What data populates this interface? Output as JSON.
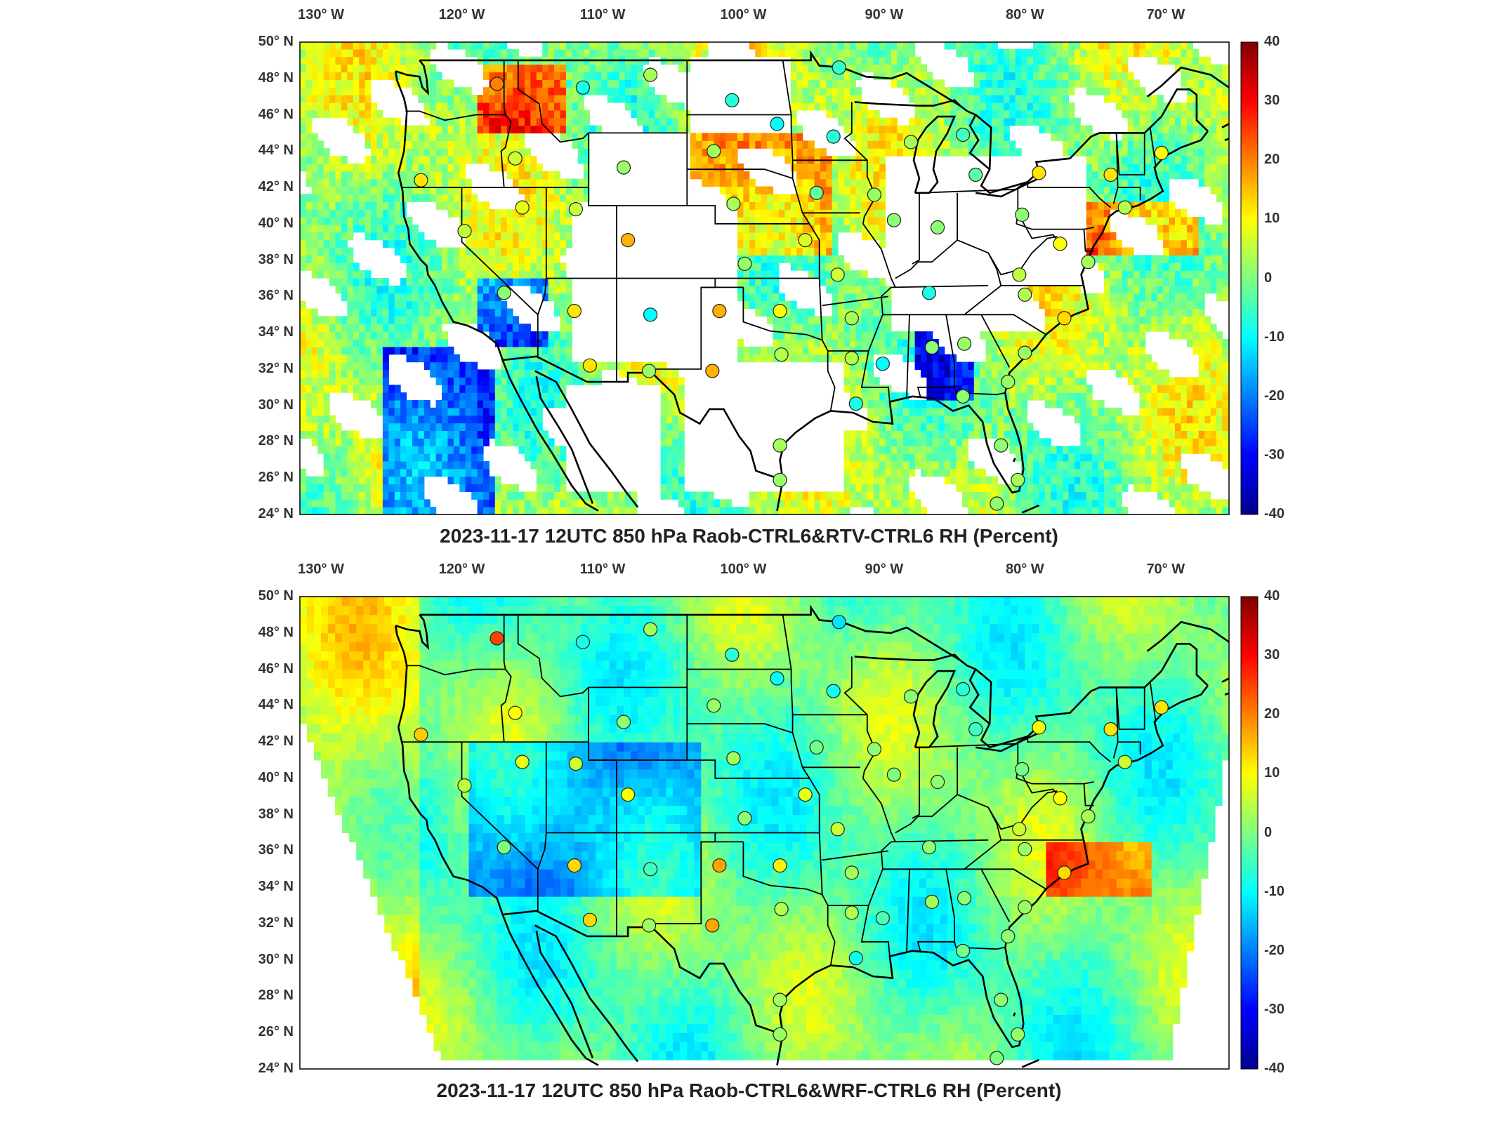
{
  "colors": {
    "colormap": [
      "#00008f",
      "#0000ff",
      "#007fff",
      "#00ffff",
      "#7fff7f",
      "#ffff00",
      "#ff7f00",
      "#ff0000",
      "#7f0000"
    ],
    "frame": "#000000",
    "background": "#ffffff"
  },
  "panels": [
    {
      "title": "2023-11-17 12UTC 850 hPa Raob-CTRL6&RTV-CTRL6 RH (Percent)",
      "field_coverage": "scattered retrieval swaths",
      "lon_labels": [
        "130° W",
        "120° W",
        "110° W",
        "100° W",
        "90° W",
        "80° W",
        "70° W"
      ],
      "lat_labels": [
        "50° N",
        "48° N",
        "46° N",
        "44° N",
        "42° N",
        "40° N",
        "38° N",
        "36° N",
        "34° N",
        "32° N",
        "30° N",
        "28° N",
        "26° N",
        "24° N"
      ],
      "colorbar_labels": [
        "40",
        "30",
        "20",
        "10",
        "0",
        "-10",
        "-20",
        "-30",
        "-40"
      ]
    },
    {
      "title": "2023-11-17 12UTC 850 hPa Raob-CTRL6&WRF-CTRL6 RH (Percent)",
      "field_coverage": "full model domain",
      "lon_labels": [
        "130° W",
        "120° W",
        "110° W",
        "100° W",
        "90° W",
        "80° W",
        "70° W"
      ],
      "lat_labels": [
        "50° N",
        "48° N",
        "46° N",
        "44° N",
        "42° N",
        "40° N",
        "38° N",
        "36° N",
        "34° N",
        "32° N",
        "30° N",
        "28° N",
        "26° N",
        "24° N"
      ],
      "colorbar_labels": [
        "40",
        "30",
        "20",
        "10",
        "0",
        "-10",
        "-20",
        "-30",
        "-40"
      ]
    }
  ],
  "stations": [
    {
      "lon": -117.5,
      "lat": 47.7,
      "top": 20,
      "bottom": 25
    },
    {
      "lon": -111.4,
      "lat": 47.5,
      "top": -8,
      "bottom": -8
    },
    {
      "lon": -106.6,
      "lat": 48.2,
      "top": 3,
      "bottom": 3
    },
    {
      "lon": -100.8,
      "lat": 46.8,
      "top": -7,
      "bottom": -7
    },
    {
      "lon": -97.6,
      "lat": 45.5,
      "top": -10,
      "bottom": -10
    },
    {
      "lon": -93.6,
      "lat": 44.8,
      "top": -7,
      "bottom": -9
    },
    {
      "lon": -93.2,
      "lat": 48.6,
      "top": -6,
      "bottom": -12
    },
    {
      "lon": -88.1,
      "lat": 44.5,
      "top": 3,
      "bottom": 1
    },
    {
      "lon": -84.4,
      "lat": 44.9,
      "top": -5,
      "bottom": -7
    },
    {
      "lon": -83.5,
      "lat": 42.7,
      "top": -3,
      "bottom": -5
    },
    {
      "lon": -79.0,
      "lat": 42.8,
      "top": 12,
      "bottom": 10
    },
    {
      "lon": -73.9,
      "lat": 42.7,
      "top": 12,
      "bottom": 12
    },
    {
      "lon": -70.3,
      "lat": 43.9,
      "top": 10,
      "bottom": 12
    },
    {
      "lon": -72.9,
      "lat": 40.9,
      "top": 4,
      "bottom": 6
    },
    {
      "lon": -80.2,
      "lat": 40.5,
      "top": 1,
      "bottom": -1
    },
    {
      "lon": -77.5,
      "lat": 38.9,
      "top": 10,
      "bottom": 10
    },
    {
      "lon": -75.5,
      "lat": 37.9,
      "top": 3,
      "bottom": 3
    },
    {
      "lon": -80.4,
      "lat": 37.2,
      "top": 5,
      "bottom": 6
    },
    {
      "lon": -80.0,
      "lat": 36.1,
      "top": 4,
      "bottom": 2
    },
    {
      "lon": -77.2,
      "lat": 34.8,
      "top": 13,
      "bottom": 13
    },
    {
      "lon": -80.0,
      "lat": 32.9,
      "top": 2,
      "bottom": 2
    },
    {
      "lon": -81.2,
      "lat": 31.3,
      "top": 2,
      "bottom": 1
    },
    {
      "lon": -81.7,
      "lat": 27.8,
      "top": 1,
      "bottom": 1
    },
    {
      "lon": -80.5,
      "lat": 25.9,
      "top": 3,
      "bottom": 2
    },
    {
      "lon": -82.0,
      "lat": 24.6,
      "top": 1,
      "bottom": 0
    },
    {
      "lon": -84.4,
      "lat": 30.5,
      "top": 1,
      "bottom": -1
    },
    {
      "lon": -86.6,
      "lat": 33.2,
      "top": 1,
      "bottom": 3
    },
    {
      "lon": -84.3,
      "lat": 33.4,
      "top": 2,
      "bottom": 1
    },
    {
      "lon": -86.8,
      "lat": 36.2,
      "top": -8,
      "bottom": 1
    },
    {
      "lon": -90.1,
      "lat": 32.3,
      "top": -10,
      "bottom": -4
    },
    {
      "lon": -92.0,
      "lat": 30.1,
      "top": -8,
      "bottom": -9
    },
    {
      "lon": -92.3,
      "lat": 32.6,
      "top": 4,
      "bottom": 4
    },
    {
      "lon": -92.3,
      "lat": 34.8,
      "top": 3,
      "bottom": 3
    },
    {
      "lon": -93.3,
      "lat": 37.2,
      "top": 6,
      "bottom": 6
    },
    {
      "lon": -95.6,
      "lat": 39.1,
      "top": 7,
      "bottom": 8
    },
    {
      "lon": -94.8,
      "lat": 41.7,
      "top": -2,
      "bottom": -1
    },
    {
      "lon": -90.7,
      "lat": 41.6,
      "top": 2,
      "bottom": 1
    },
    {
      "lon": -89.3,
      "lat": 40.2,
      "top": 1,
      "bottom": 0
    },
    {
      "lon": -86.2,
      "lat": 39.8,
      "top": 1,
      "bottom": 1
    },
    {
      "lon": -100.7,
      "lat": 41.1,
      "top": 3,
      "bottom": 3
    },
    {
      "lon": -102.1,
      "lat": 44.0,
      "top": 3,
      "bottom": 2
    },
    {
      "lon": -99.9,
      "lat": 37.8,
      "top": 2,
      "bottom": 1
    },
    {
      "lon": -97.4,
      "lat": 35.2,
      "top": 10,
      "bottom": 11
    },
    {
      "lon": -101.7,
      "lat": 35.2,
      "top": 16,
      "bottom": 17
    },
    {
      "lon": -97.3,
      "lat": 32.8,
      "top": 4,
      "bottom": 4
    },
    {
      "lon": -102.2,
      "lat": 31.9,
      "top": 16,
      "bottom": 17
    },
    {
      "lon": -106.6,
      "lat": 35.0,
      "top": -10,
      "bottom": -5
    },
    {
      "lon": -108.2,
      "lat": 39.1,
      "top": 16,
      "bottom": 10
    },
    {
      "lon": -108.5,
      "lat": 43.1,
      "top": 2,
      "bottom": 1
    },
    {
      "lon": -111.9,
      "lat": 40.8,
      "top": 6,
      "bottom": 6
    },
    {
      "lon": -116.2,
      "lat": 43.6,
      "top": 6,
      "bottom": 10
    },
    {
      "lon": -115.7,
      "lat": 40.9,
      "top": 8,
      "bottom": 8
    },
    {
      "lon": -119.8,
      "lat": 39.6,
      "top": 5,
      "bottom": 5
    },
    {
      "lon": -122.9,
      "lat": 42.4,
      "top": 12,
      "bottom": 14
    },
    {
      "lon": -117.0,
      "lat": 36.2,
      "top": 1,
      "bottom": 0
    },
    {
      "lon": -112.0,
      "lat": 35.2,
      "top": 12,
      "bottom": 13
    },
    {
      "lon": -110.9,
      "lat": 32.2,
      "top": 12,
      "bottom": 13
    },
    {
      "lon": -106.7,
      "lat": 31.9,
      "top": 2,
      "bottom": 2
    },
    {
      "lon": -97.4,
      "lat": 27.8,
      "top": 3,
      "bottom": 3
    },
    {
      "lon": -97.4,
      "lat": 25.9,
      "top": 2,
      "bottom": 2
    }
  ]
}
